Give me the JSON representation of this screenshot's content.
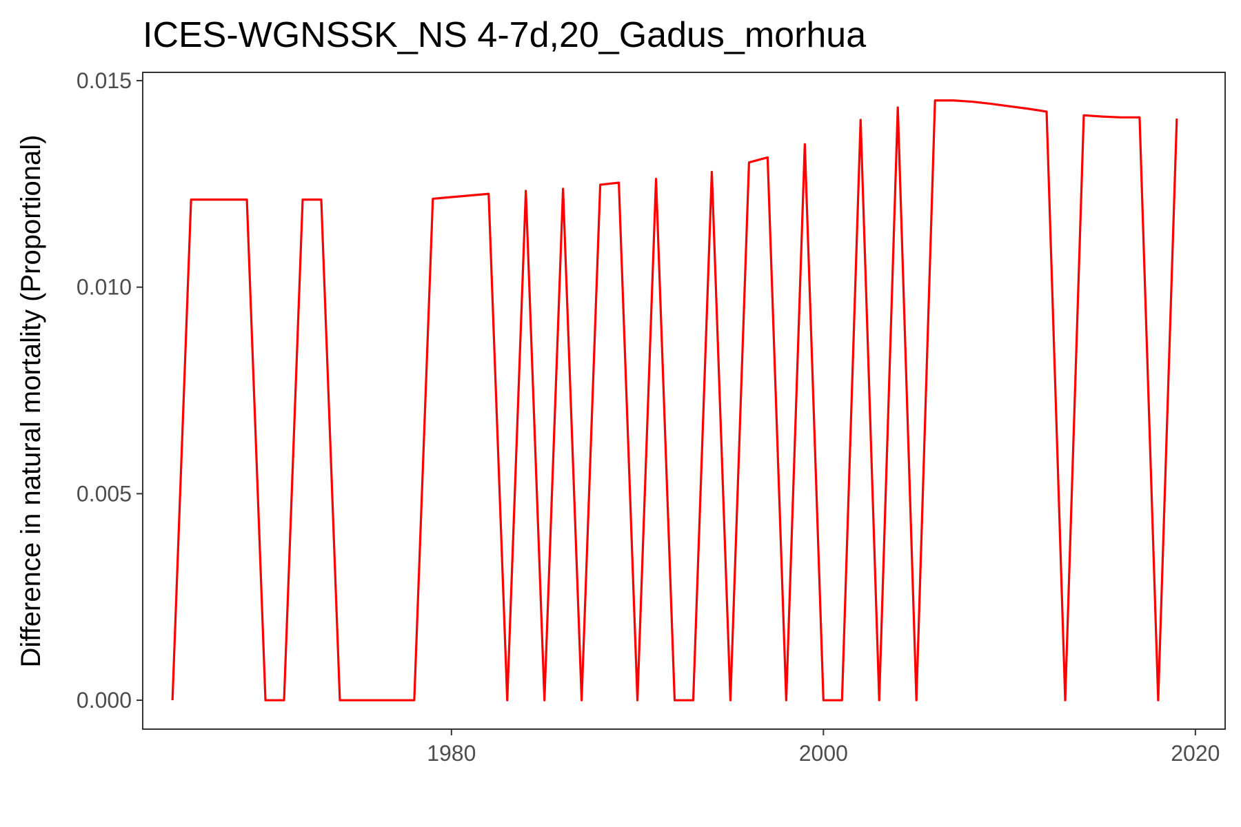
{
  "chart_data": {
    "type": "line",
    "title": "ICES-WGNSSK_NS 4-7d,20_Gadus_morhua",
    "xlabel": "",
    "ylabel": "Difference in natural mortality (Proportional)",
    "xlim": [
      1963.4,
      2021.6
    ],
    "ylim": [
      -0.0007,
      0.0152
    ],
    "x_ticks": [
      1980,
      2000,
      2020
    ],
    "x_tick_labels": [
      "1980",
      "2000",
      "2020"
    ],
    "y_ticks": [
      0.0,
      0.005,
      0.01,
      0.015
    ],
    "y_tick_labels": [
      "0.000",
      "0.005",
      "0.010",
      "0.015"
    ],
    "grid": false,
    "series": [
      {
        "color": "#ff0000",
        "x": [
          1965,
          1966,
          1967,
          1968,
          1969,
          1970,
          1971,
          1972,
          1973,
          1974,
          1975,
          1976,
          1977,
          1978,
          1979,
          1980,
          1981,
          1982,
          1983,
          1984,
          1985,
          1986,
          1987,
          1988,
          1989,
          1990,
          1991,
          1992,
          1993,
          1994,
          1995,
          1996,
          1997,
          1998,
          1999,
          2000,
          2001,
          2002,
          2003,
          2004,
          2005,
          2006,
          2007,
          2008,
          2009,
          2010,
          2011,
          2012,
          2013,
          2014,
          2015,
          2016,
          2017,
          2018,
          2019
        ],
        "y": [
          0.0,
          0.01212,
          0.01212,
          0.01212,
          0.01212,
          0.0,
          0.0,
          0.01212,
          0.01212,
          0.0,
          0.0,
          0.0,
          0.0,
          0.0,
          0.01214,
          0.01218,
          0.01222,
          0.01226,
          0.0,
          0.01233,
          0.0,
          0.01238,
          0.0,
          0.01248,
          0.01253,
          0.0,
          0.01262,
          0.0,
          0.0,
          0.01279,
          0.0,
          0.01302,
          0.01314,
          0.0,
          0.01346,
          0.0,
          0.0,
          0.01405,
          0.0,
          0.01435,
          0.0,
          0.01452,
          0.01452,
          0.01449,
          0.01444,
          0.01438,
          0.01432,
          0.01425,
          0.0,
          0.01416,
          0.01413,
          0.01411,
          0.01411,
          0.0,
          0.01408
        ]
      }
    ]
  }
}
